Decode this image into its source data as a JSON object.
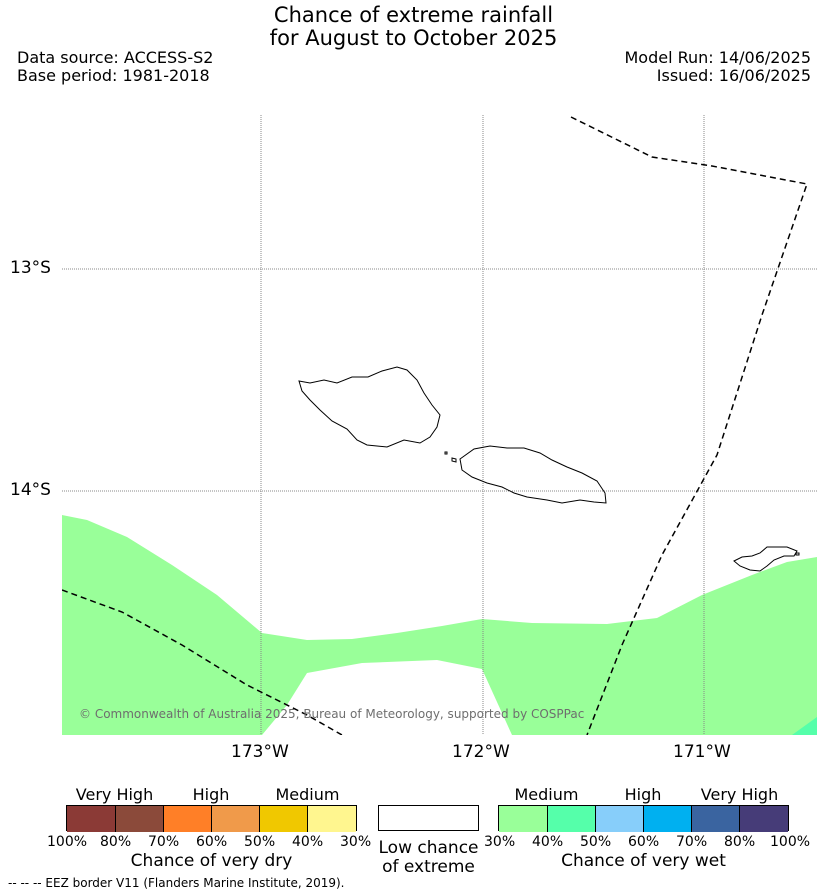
{
  "header": {
    "title_line1": "Chance of extreme rainfall",
    "title_line2": "for August to October 2025",
    "data_source": "Data source: ACCESS-S2",
    "base_period": "Base period: 1981-2018",
    "model_run": "Model Run: 14/06/2025",
    "issued": "Issued: 16/06/2025"
  },
  "map": {
    "lat_ticks": [
      "13°S",
      "14°S"
    ],
    "lon_ticks": [
      "173°W",
      "172°W",
      "171°W"
    ],
    "copyright": "© Commonwealth of Australia 2025, Bureau of Meteorology, supported by COSPPac",
    "fill_color_medium_wet": "#99ff99",
    "fill_color_high_wet": "#55ffaa"
  },
  "legend_dry": {
    "group_labels": [
      "Very High",
      "High",
      "Medium"
    ],
    "percent_labels": [
      "100%",
      "80%",
      "70%",
      "60%",
      "50%",
      "40%",
      "30%"
    ],
    "title": "Chance of very dry",
    "colors": [
      "#8b3a36",
      "#8b4a3a",
      "#ff7f27",
      "#f09a4a",
      "#f0c800",
      "#fff68f"
    ]
  },
  "legend_neutral": {
    "line1": "Low chance",
    "line2": "of extreme",
    "color": "#ffffff"
  },
  "legend_wet": {
    "group_labels": [
      "Medium",
      "High",
      "Very High"
    ],
    "percent_labels": [
      "30%",
      "40%",
      "50%",
      "60%",
      "70%",
      "80%",
      "100%"
    ],
    "title": "Chance of very wet",
    "colors": [
      "#99ff99",
      "#55ffaa",
      "#87cefa",
      "#00b0f0",
      "#3a64a0",
      "#463c78"
    ]
  },
  "footnote": "--  --  -- EEZ border V11 (Flanders Marine Institute, 2019)."
}
